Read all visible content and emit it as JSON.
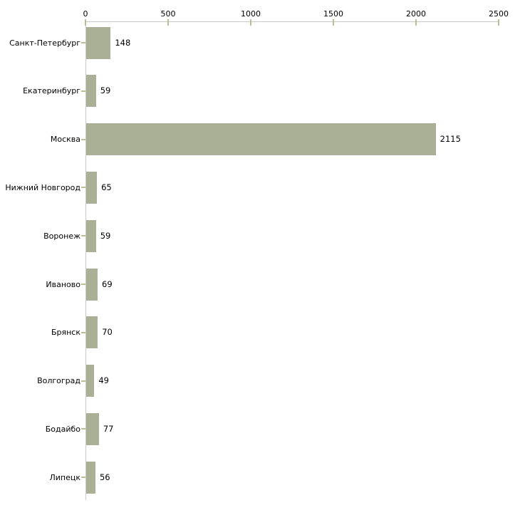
{
  "chart_data": {
    "type": "bar",
    "orientation": "horizontal",
    "title": "",
    "xlabel": "",
    "ylabel": "",
    "categories": [
      "Санкт-Петербург",
      "Екатеринбург",
      "Москва",
      "Нижний Новгород",
      "Воронеж",
      "Иваново",
      "Брянск",
      "Волгоград",
      "Бодайбо",
      "Липецк"
    ],
    "values": [
      148,
      59,
      2115,
      65,
      59,
      69,
      70,
      49,
      77,
      56
    ],
    "value_labels": [
      "148",
      "59",
      "2115",
      "65",
      "59",
      "69",
      "70",
      "49",
      "77",
      "56"
    ],
    "xlim": [
      0,
      2500
    ],
    "x_ticks": [
      0,
      500,
      1000,
      1500,
      2000,
      2500
    ],
    "x_tick_labels": [
      "0",
      "500",
      "1000",
      "1500",
      "2000",
      "2500"
    ],
    "grid": false,
    "legend": "none",
    "axis_position": "top-left",
    "colors": {
      "bar_fill": "#a9b095",
      "tick_mark": "#bdbd93",
      "axis_line": "#c9c9c9",
      "text": "#000000",
      "background": "#ffffff"
    }
  }
}
